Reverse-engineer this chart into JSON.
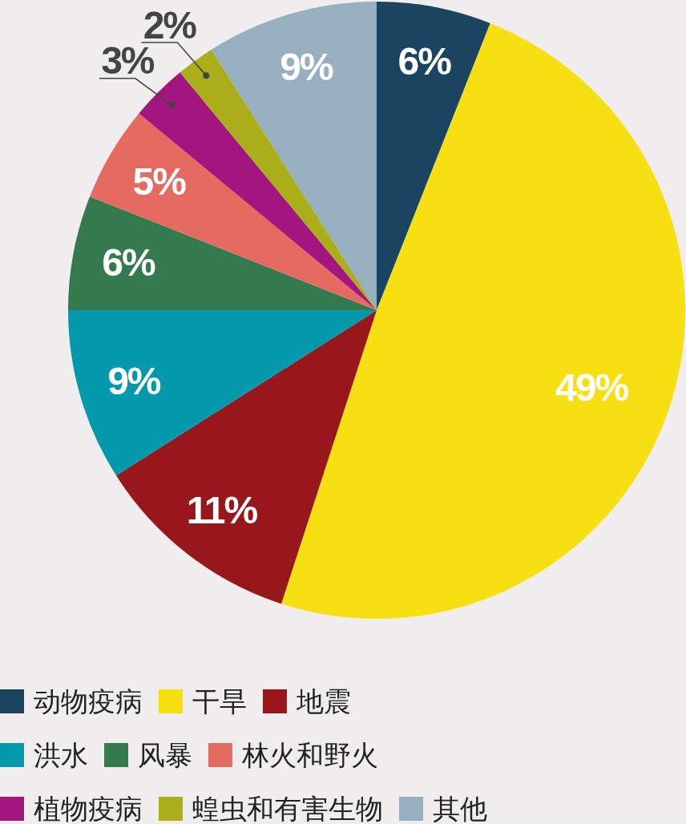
{
  "chart_data": {
    "type": "pie",
    "categories": [
      "动物疫病",
      "干旱",
      "地震",
      "洪水",
      "风暴",
      "林火和野火",
      "植物疫病",
      "蝗虫和有害生物",
      "其他"
    ],
    "values": [
      6,
      49,
      11,
      9,
      6,
      5,
      3,
      2,
      9
    ],
    "colors": [
      "#1b4460",
      "#f6e011",
      "#97171a",
      "#0199ab",
      "#357a4f",
      "#e56b60",
      "#a3157f",
      "#aaaf19",
      "#97b0bf"
    ],
    "value_labels": [
      "6%",
      "49%",
      "11%",
      "9%",
      "6%",
      "5%",
      "3%",
      "2%",
      "9%"
    ],
    "legend": "bottom"
  }
}
